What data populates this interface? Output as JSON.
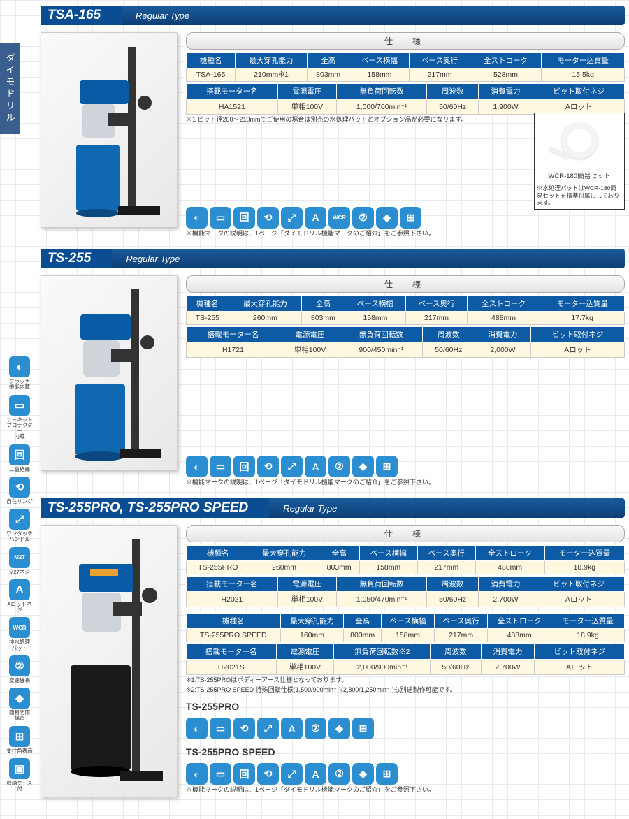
{
  "side_tab": "ダイモドリル",
  "left_icons": [
    {
      "label": "クラッチ\n機能内蔵",
      "glyph": "◐"
    },
    {
      "label": "サーキット\nプロテクター\n内蔵",
      "glyph": "▭"
    },
    {
      "label": "二重絶縁",
      "glyph": "回"
    },
    {
      "label": "自在リング",
      "glyph": "⟲"
    },
    {
      "label": "ワンタッチ\nハンドル",
      "glyph": "⤢"
    },
    {
      "label": "M27ネジ",
      "glyph": "M27"
    },
    {
      "label": "Aロットネジ",
      "glyph": "A"
    },
    {
      "label": "排水処理\nパット",
      "glyph": "WCR"
    },
    {
      "label": "変速機構",
      "glyph": "②"
    },
    {
      "label": "簡易防雨\n構造",
      "glyph": "◆"
    },
    {
      "label": "支柱角表示",
      "glyph": "⊞"
    },
    {
      "label": "収納ケース付",
      "glyph": "▣"
    }
  ],
  "sections": [
    {
      "model": "TSA-165",
      "type": "Regular Type",
      "spec_title": "仕　様",
      "table1": {
        "headers": [
          "機種名",
          "最大穿孔能力",
          "全高",
          "ベース横幅",
          "ベース奥行",
          "全ストローク",
          "モーター込質量"
        ],
        "row": [
          "TSA-165",
          "210mm※1",
          "803mm",
          "158mm",
          "217mm",
          "528mm",
          "15.5kg"
        ]
      },
      "table2": {
        "headers": [
          "搭載モーター名",
          "電源電圧",
          "無負荷回転数",
          "周波数",
          "消費電力",
          "ビット取付ネジ"
        ],
        "row": [
          "HA1521",
          "単相100V",
          "1,000/700min⁻¹",
          "50/60Hz",
          "1,900W",
          "Aロット"
        ]
      },
      "notes": [
        "※1 ビット径200～210mmでご使用の場合は別売の水処理パットとオプション品が必要になります。"
      ],
      "icons": [
        "◐",
        "▭",
        "回",
        "⟲",
        "⤢",
        "A",
        "WCR",
        "②",
        "◆",
        "⊞"
      ],
      "icon_note": "※機能マークの説明は、1ページ「ダイモドリル機能マークのご紹介」をご参照下さい。",
      "accessory": {
        "label": "WCR-180簡易セット",
        "note": "※水処理パットはWCR-180簡易セットを標準付属にしております。"
      }
    },
    {
      "model": "TS-255",
      "type": "Regular Type",
      "spec_title": "仕　様",
      "table1": {
        "headers": [
          "機種名",
          "最大穿孔能力",
          "全高",
          "ベース横幅",
          "ベース奥行",
          "全ストローク",
          "モーター込質量"
        ],
        "row": [
          "TS-255",
          "260mm",
          "803mm",
          "158mm",
          "217mm",
          "488mm",
          "17.7kg"
        ]
      },
      "table2": {
        "headers": [
          "搭載モーター名",
          "電源電圧",
          "無負荷回転数",
          "周波数",
          "消費電力",
          "ビット取付ネジ"
        ],
        "row": [
          "H1721",
          "単相100V",
          "900/450min⁻¹",
          "50/60Hz",
          "2,000W",
          "Aロット"
        ]
      },
      "icons": [
        "◐",
        "▭",
        "回",
        "⟲",
        "⤢",
        "A",
        "②",
        "◆",
        "⊞"
      ],
      "icon_note": "※機能マークの説明は、1ページ「ダイモドリル機能マークのご紹介」をご参照下さい。"
    },
    {
      "model": "TS-255PRO,  TS-255PRO SPEED",
      "type": "Regular Type",
      "spec_title": "仕　様",
      "table1": {
        "headers": [
          "機種名",
          "最大穿孔能力",
          "全高",
          "ベース横幅",
          "ベース奥行",
          "全ストローク",
          "モーター込質量"
        ],
        "row": [
          "TS-255PRO",
          "260mm",
          "803mm",
          "158mm",
          "217mm",
          "488mm",
          "18.9kg"
        ]
      },
      "table2": {
        "headers": [
          "搭載モーター名",
          "電源電圧",
          "無負荷回転数",
          "周波数",
          "消費電力",
          "ビット取付ネジ"
        ],
        "row": [
          "H2021",
          "単相100V",
          "1,050/470min⁻¹",
          "50/60Hz",
          "2,700W",
          "Aロット"
        ]
      },
      "table3": {
        "headers": [
          "機種名",
          "最大穿孔能力",
          "全高",
          "ベース横幅",
          "ベース奥行",
          "全ストローク",
          "モーター込質量"
        ],
        "row": [
          "TS-255PRO SPEED",
          "160mm",
          "803mm",
          "158mm",
          "217mm",
          "488mm",
          "18.9kg"
        ]
      },
      "table4": {
        "headers": [
          "搭載モーター名",
          "電源電圧",
          "無負荷回転数※2",
          "周波数",
          "消費電力",
          "ビット取付ネジ"
        ],
        "row": [
          "H2021S",
          "単相100V",
          "2,000/900min⁻¹",
          "50/60Hz",
          "2,700W",
          "Aロット"
        ]
      },
      "notes": [
        "※1:TS-255PROはボディーアース仕様となっております。",
        "※2:TS-255PRO SPEED 特殊回転仕様(1,500/900min⁻¹)(2,800/1,250min⁻¹)も別途製作可能です。"
      ],
      "sub1": "TS-255PRO",
      "icons1": [
        "◐",
        "▭",
        "⟲",
        "⤢",
        "A",
        "②",
        "◆",
        "⊞"
      ],
      "sub2": "TS-255PRO SPEED",
      "icons2": [
        "◐",
        "▭",
        "回",
        "⟲",
        "⤢",
        "A",
        "②",
        "◆",
        "⊞"
      ],
      "icon_note": "※機能マークの説明は、1ページ「ダイモドリル機能マークのご紹介」をご参照下さい。"
    }
  ],
  "colors": {
    "header_bg": "#0d5ba5",
    "cell_bg": "#fff8e0",
    "icon_bg": "#2a8ed0",
    "sidebar_bg": "#3a5e8e"
  }
}
